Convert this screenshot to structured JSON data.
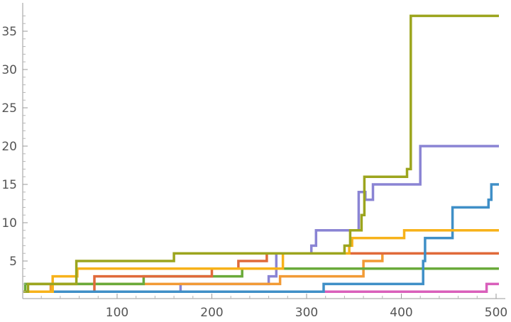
{
  "chart_data": {
    "type": "line",
    "step": true,
    "title": "",
    "xlabel": "",
    "ylabel": "",
    "xlim": [
      0,
      503
    ],
    "ylim": [
      0,
      38
    ],
    "x_ticks": [
      100,
      200,
      300,
      400,
      500
    ],
    "y_ticks": [
      5,
      10,
      15,
      20,
      25,
      30,
      35
    ],
    "x_tick_labels": [
      "100",
      "200",
      "300",
      "400",
      "500"
    ],
    "y_tick_labels": [
      "5",
      "10",
      "15",
      "20",
      "25",
      "30",
      "35"
    ],
    "grid": false,
    "legend": "none",
    "series": [
      {
        "color": "#d95fbb",
        "points": [
          [
            0,
            1
          ],
          [
            490,
            1
          ],
          [
            490,
            2
          ],
          [
            503,
            2
          ]
        ]
      },
      {
        "color": "#8a84d4",
        "points": [
          [
            0,
            1
          ],
          [
            167,
            1
          ],
          [
            167,
            2
          ],
          [
            260,
            2
          ],
          [
            260,
            3
          ],
          [
            268,
            3
          ],
          [
            268,
            6
          ],
          [
            305,
            6
          ],
          [
            305,
            7
          ],
          [
            310,
            7
          ],
          [
            310,
            9
          ],
          [
            355,
            9
          ],
          [
            355,
            14
          ],
          [
            362,
            14
          ],
          [
            362,
            13
          ],
          [
            370,
            13
          ],
          [
            370,
            15
          ],
          [
            420,
            15
          ],
          [
            420,
            20
          ],
          [
            503,
            20
          ]
        ]
      },
      {
        "color": "#f29a35",
        "points": [
          [
            0,
            1
          ],
          [
            30,
            1
          ],
          [
            30,
            2
          ],
          [
            128,
            2
          ],
          [
            128,
            2
          ],
          [
            272,
            2
          ],
          [
            272,
            3
          ],
          [
            360,
            3
          ],
          [
            360,
            5
          ],
          [
            380,
            5
          ],
          [
            380,
            6
          ],
          [
            503,
            6
          ]
        ]
      },
      {
        "color": "#6aaa3a",
        "points": [
          [
            0,
            1
          ],
          [
            3,
            1
          ],
          [
            3,
            2
          ],
          [
            128,
            2
          ],
          [
            128,
            3
          ],
          [
            232,
            3
          ],
          [
            232,
            4
          ],
          [
            503,
            4
          ]
        ]
      },
      {
        "color": "#e06a3a",
        "points": [
          [
            0,
            1
          ],
          [
            76,
            1
          ],
          [
            76,
            3
          ],
          [
            200,
            3
          ],
          [
            200,
            4
          ],
          [
            228,
            4
          ],
          [
            228,
            5
          ],
          [
            258,
            5
          ],
          [
            258,
            6
          ],
          [
            503,
            6
          ]
        ]
      },
      {
        "color": "#3f8fc7",
        "points": [
          [
            0,
            1
          ],
          [
            318,
            1
          ],
          [
            318,
            2
          ],
          [
            423,
            2
          ],
          [
            423,
            5
          ],
          [
            425,
            5
          ],
          [
            425,
            8
          ],
          [
            454,
            8
          ],
          [
            454,
            12
          ],
          [
            492,
            12
          ],
          [
            492,
            13
          ],
          [
            495,
            13
          ],
          [
            495,
            15
          ],
          [
            503,
            15
          ]
        ]
      },
      {
        "color": "#f7b21a",
        "points": [
          [
            0,
            1
          ],
          [
            32,
            1
          ],
          [
            32,
            3
          ],
          [
            58,
            3
          ],
          [
            58,
            4
          ],
          [
            275,
            4
          ],
          [
            275,
            6
          ],
          [
            345,
            6
          ],
          [
            345,
            7
          ],
          [
            348,
            7
          ],
          [
            348,
            8
          ],
          [
            403,
            8
          ],
          [
            403,
            9
          ],
          [
            503,
            9
          ]
        ]
      },
      {
        "color": "#9ca51e",
        "points": [
          [
            0,
            1
          ],
          [
            6,
            1
          ],
          [
            6,
            2
          ],
          [
            57,
            2
          ],
          [
            57,
            5
          ],
          [
            160,
            5
          ],
          [
            160,
            6
          ],
          [
            340,
            6
          ],
          [
            340,
            7
          ],
          [
            346,
            7
          ],
          [
            346,
            9
          ],
          [
            358,
            9
          ],
          [
            358,
            11
          ],
          [
            361,
            11
          ],
          [
            361,
            16
          ],
          [
            406,
            16
          ],
          [
            406,
            17
          ],
          [
            410,
            17
          ],
          [
            410,
            37
          ],
          [
            503,
            37
          ]
        ]
      }
    ]
  }
}
